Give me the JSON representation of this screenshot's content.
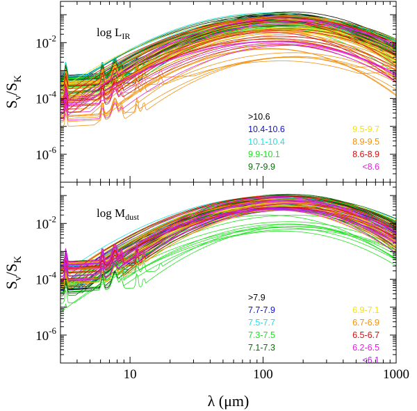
{
  "chart_data": [
    {
      "type": "line",
      "panel_label": "log L",
      "panel_label_sub": "IR",
      "xscale": "log",
      "yscale": "log",
      "xlim": [
        3,
        1000
      ],
      "ylim": [
        1e-07,
        0.3
      ],
      "x_ticks": [
        {
          "value": 10,
          "label": "10"
        },
        {
          "value": 100,
          "label": "100"
        },
        {
          "value": 1000,
          "label": "1000"
        }
      ],
      "y_ticks": [
        {
          "value": 0.01,
          "base": "10",
          "exp": "-2"
        },
        {
          "value": 0.0001,
          "base": "10",
          "exp": "-4"
        },
        {
          "value": 1e-06,
          "base": "10",
          "exp": "-6"
        }
      ],
      "ylabel": {
        "main": "S",
        "sub1": "ν",
        "slash": "/S",
        "sub2": "K"
      },
      "legend_left": [
        {
          "name": ">10.6",
          "color": "#000000"
        },
        {
          "name": "10.4-10.6",
          "color": "#1010c8"
        },
        {
          "name": "10.1-10.4",
          "color": "#20e0e0"
        },
        {
          "name": "9.9-10.1",
          "color": "#20e020"
        },
        {
          "name": "9.7-9.9",
          "color": "#0a6a0a"
        }
      ],
      "legend_right": [
        {
          "name": "9.5-9.7",
          "color": "#f0e020"
        },
        {
          "name": "8.9-9.5",
          "color": "#f09010"
        },
        {
          "name": "8.6-8.9",
          "color": "#d01010"
        },
        {
          "name": "<8.6",
          "color": "#e020e0"
        }
      ],
      "series_groups": [
        {
          "color": "#000000",
          "count": 10,
          "peak": [
            0.05,
            0.13
          ],
          "mir": [
            0.0004,
            0.001
          ]
        },
        {
          "color": "#1010c8",
          "count": 8,
          "peak": [
            0.04,
            0.12
          ],
          "mir": [
            0.0003,
            0.0008
          ]
        },
        {
          "color": "#20e0e0",
          "count": 10,
          "peak": [
            0.04,
            0.13
          ],
          "mir": [
            0.0003,
            0.0009
          ]
        },
        {
          "color": "#20e020",
          "count": 16,
          "peak": [
            0.03,
            0.12
          ],
          "mir": [
            0.00015,
            0.0008
          ]
        },
        {
          "color": "#0a6a0a",
          "count": 16,
          "peak": [
            0.03,
            0.12
          ],
          "mir": [
            0.0001,
            0.0007
          ]
        },
        {
          "color": "#f0e020",
          "count": 14,
          "peak": [
            0.02,
            0.11
          ],
          "mir": [
            8e-05,
            0.0006
          ]
        },
        {
          "color": "#f09010",
          "count": 22,
          "peak": [
            0.002,
            0.1
          ],
          "mir": [
            1e-05,
            0.0005
          ]
        },
        {
          "color": "#d01010",
          "count": 12,
          "peak": [
            0.008,
            0.1
          ],
          "mir": [
            3e-05,
            0.0005
          ]
        },
        {
          "color": "#e020e0",
          "count": 8,
          "peak": [
            0.005,
            0.08
          ],
          "mir": [
            2e-05,
            0.0004
          ]
        }
      ]
    },
    {
      "type": "line",
      "panel_label": "log M",
      "panel_label_sub": "dust",
      "xscale": "log",
      "yscale": "log",
      "xlim": [
        3,
        1000
      ],
      "ylim": [
        1e-07,
        0.3
      ],
      "x_ticks": [
        {
          "value": 10,
          "label": "10"
        },
        {
          "value": 100,
          "label": "100"
        },
        {
          "value": 1000,
          "label": "1000"
        }
      ],
      "y_ticks": [
        {
          "value": 0.01,
          "base": "10",
          "exp": "-2"
        },
        {
          "value": 0.0001,
          "base": "10",
          "exp": "-4"
        },
        {
          "value": 1e-06,
          "base": "10",
          "exp": "-6"
        }
      ],
      "ylabel": {
        "main": "S",
        "sub1": "ν",
        "slash": "/S",
        "sub2": "K"
      },
      "xlabel": {
        "main": "λ (μm)"
      },
      "legend_left": [
        {
          "name": ">7.9",
          "color": "#000000"
        },
        {
          "name": "7.7-7.9",
          "color": "#1010c8"
        },
        {
          "name": "7.5-7.7",
          "color": "#20e0e0"
        },
        {
          "name": "7.3-7.5",
          "color": "#20e020"
        },
        {
          "name": "7.1-7.3",
          "color": "#0a6a0a"
        }
      ],
      "legend_right": [
        {
          "name": "6.9-7.1",
          "color": "#f0e020"
        },
        {
          "name": "6.7-6.9",
          "color": "#f09010"
        },
        {
          "name": "6.5-6.7",
          "color": "#d01010"
        },
        {
          "name": "6.2-6.5",
          "color": "#e020e0"
        },
        {
          "name": "<6.1",
          "color": "#b020e0"
        }
      ],
      "series_groups": [
        {
          "color": "#000000",
          "count": 10,
          "peak": [
            0.04,
            0.12
          ],
          "mir": [
            5e-05,
            0.0006
          ]
        },
        {
          "color": "#1010c8",
          "count": 8,
          "peak": [
            0.03,
            0.11
          ],
          "mir": [
            5e-05,
            0.0006
          ]
        },
        {
          "color": "#20e0e0",
          "count": 10,
          "peak": [
            0.03,
            0.11
          ],
          "mir": [
            4e-05,
            0.0006
          ]
        },
        {
          "color": "#20e020",
          "count": 18,
          "peak": [
            0.004,
            0.1
          ],
          "mir": [
            3e-06,
            0.0005
          ]
        },
        {
          "color": "#0a6a0a",
          "count": 14,
          "peak": [
            0.03,
            0.12
          ],
          "mir": [
            3e-05,
            0.0006
          ]
        },
        {
          "color": "#f0e020",
          "count": 12,
          "peak": [
            0.03,
            0.11
          ],
          "mir": [
            5e-05,
            0.0006
          ]
        },
        {
          "color": "#f09010",
          "count": 14,
          "peak": [
            0.03,
            0.11
          ],
          "mir": [
            5e-05,
            0.0006
          ]
        },
        {
          "color": "#d01010",
          "count": 10,
          "peak": [
            0.03,
            0.1
          ],
          "mir": [
            0.0001,
            0.0006
          ]
        },
        {
          "color": "#e020e0",
          "count": 8,
          "peak": [
            0.03,
            0.1
          ],
          "mir": [
            0.0001,
            0.0006
          ]
        },
        {
          "color": "#b020e0",
          "count": 4,
          "peak": [
            0.03,
            0.09
          ],
          "mir": [
            0.0001,
            0.0005
          ]
        }
      ]
    }
  ]
}
